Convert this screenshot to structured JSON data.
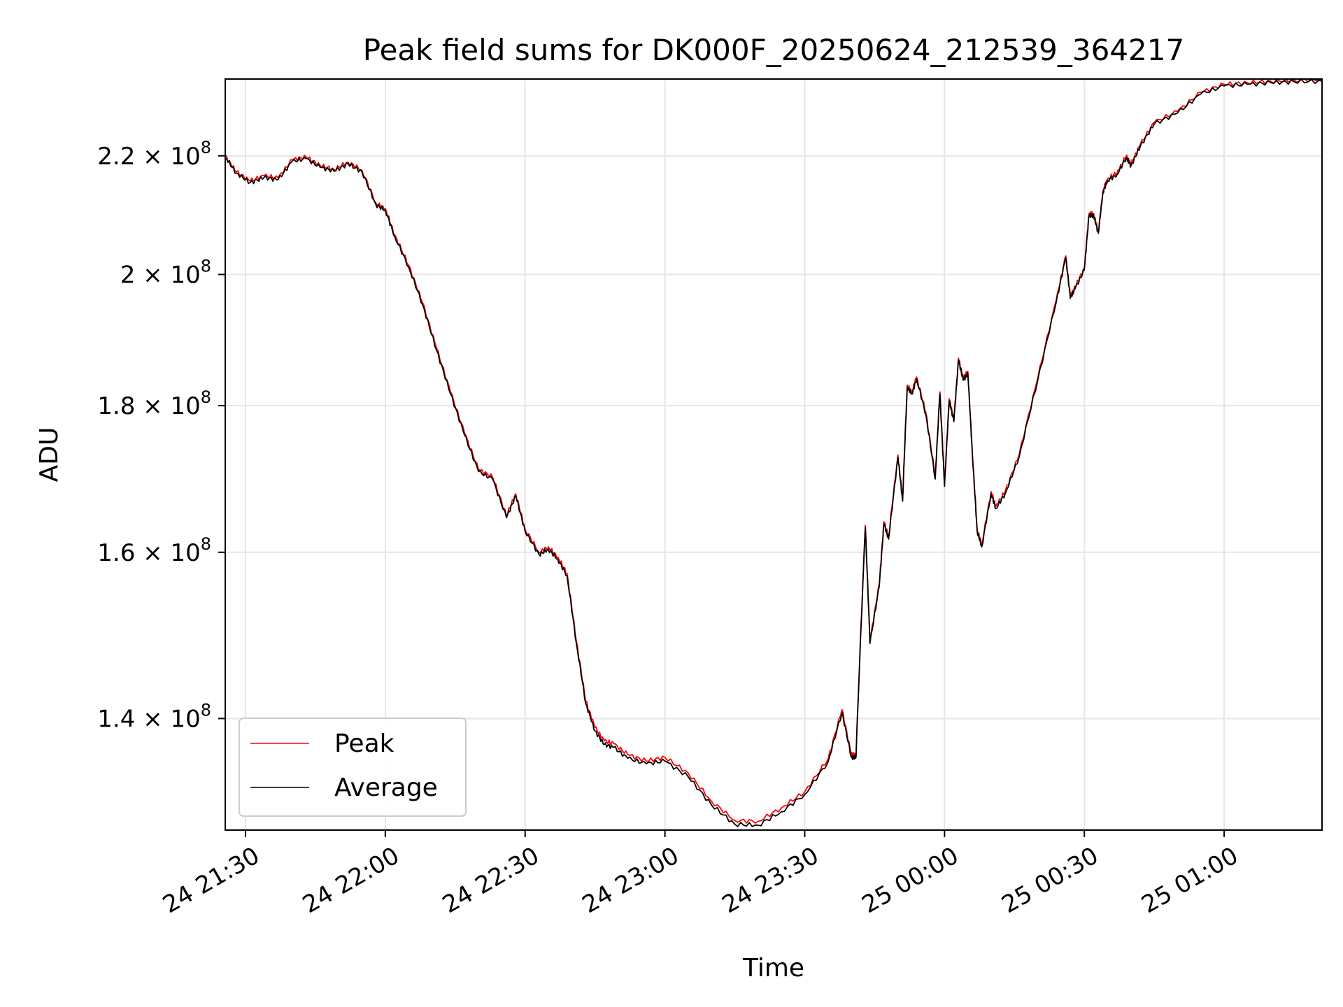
{
  "chart_data": {
    "type": "line",
    "title": "Peak field sums for DK000F_20250624_212539_364217",
    "xlabel": "Time",
    "ylabel": "ADU",
    "y_scale": "log",
    "xlim": [
      "2025-06-24 21:25:39",
      "2025-06-25 01:21:00"
    ],
    "ylim": [
      128000000,
      234000000
    ],
    "grid": true,
    "legend_position": "lower-left",
    "x_ticks": [
      {
        "value": "2025-06-24 21:30:00",
        "label": "24 21:30"
      },
      {
        "value": "2025-06-24 22:00:00",
        "label": "24 22:00"
      },
      {
        "value": "2025-06-24 22:30:00",
        "label": "24 22:30"
      },
      {
        "value": "2025-06-24 23:00:00",
        "label": "24 23:00"
      },
      {
        "value": "2025-06-24 23:30:00",
        "label": "24 23:30"
      },
      {
        "value": "2025-06-25 00:00:00",
        "label": "25 00:00"
      },
      {
        "value": "2025-06-25 00:30:00",
        "label": "25 00:30"
      },
      {
        "value": "2025-06-25 01:00:00",
        "label": "25 01:00"
      }
    ],
    "y_ticks": [
      {
        "value": 140000000,
        "mantissa": "1.4",
        "exponent": "8"
      },
      {
        "value": 160000000,
        "mantissa": "1.6",
        "exponent": "8"
      },
      {
        "value": 180000000,
        "mantissa": "1.8",
        "exponent": "8"
      },
      {
        "value": 200000000,
        "mantissa": "2",
        "exponent": "8"
      },
      {
        "value": 220000000,
        "mantissa": "2.2",
        "exponent": "8"
      }
    ],
    "x": [
      "2025-06-24 21:25:39",
      "2025-06-24 21:28:00",
      "2025-06-24 21:31:00",
      "2025-06-24 21:34:00",
      "2025-06-24 21:37:00",
      "2025-06-24 21:40:00",
      "2025-06-24 21:43:00",
      "2025-06-24 21:46:00",
      "2025-06-24 21:49:00",
      "2025-06-24 21:52:00",
      "2025-06-24 21:55:00",
      "2025-06-24 21:58:00",
      "2025-06-24 22:00:00",
      "2025-06-24 22:02:00",
      "2025-06-24 22:05:00",
      "2025-06-24 22:08:00",
      "2025-06-24 22:11:00",
      "2025-06-24 22:14:00",
      "2025-06-24 22:17:00",
      "2025-06-24 22:20:00",
      "2025-06-24 22:23:00",
      "2025-06-24 22:26:00",
      "2025-06-24 22:28:00",
      "2025-06-24 22:30:00",
      "2025-06-24 22:33:00",
      "2025-06-24 22:35:00",
      "2025-06-24 22:37:00",
      "2025-06-24 22:39:00",
      "2025-06-24 22:41:00",
      "2025-06-24 22:43:00",
      "2025-06-24 22:45:00",
      "2025-06-24 22:47:00",
      "2025-06-24 22:49:00",
      "2025-06-24 22:52:00",
      "2025-06-24 22:56:00",
      "2025-06-24 23:00:00",
      "2025-06-24 23:05:00",
      "2025-06-24 23:10:00",
      "2025-06-24 23:15:00",
      "2025-06-24 23:20:00",
      "2025-06-24 23:25:00",
      "2025-06-24 23:30:00",
      "2025-06-24 23:35:00",
      "2025-06-24 23:38:00",
      "2025-06-24 23:40:00",
      "2025-06-24 23:41:00",
      "2025-06-24 23:43:00",
      "2025-06-24 23:44:00",
      "2025-06-24 23:46:00",
      "2025-06-24 23:47:00",
      "2025-06-24 23:48:00",
      "2025-06-24 23:50:00",
      "2025-06-24 23:51:00",
      "2025-06-24 23:52:00",
      "2025-06-24 23:53:00",
      "2025-06-24 23:54:00",
      "2025-06-24 23:56:00",
      "2025-06-24 23:58:00",
      "2025-06-24 23:59:00",
      "2025-06-25 00:00:00",
      "2025-06-25 00:01:00",
      "2025-06-25 00:02:00",
      "2025-06-25 00:03:00",
      "2025-06-25 00:04:00",
      "2025-06-25 00:05:00",
      "2025-06-25 00:06:00",
      "2025-06-25 00:07:00",
      "2025-06-25 00:08:00",
      "2025-06-25 00:10:00",
      "2025-06-25 00:11:00",
      "2025-06-25 00:13:00",
      "2025-06-25 00:16:00",
      "2025-06-25 00:20:00",
      "2025-06-25 00:24:00",
      "2025-06-25 00:26:00",
      "2025-06-25 00:27:00",
      "2025-06-25 00:28:00",
      "2025-06-25 00:30:00",
      "2025-06-25 00:31:00",
      "2025-06-25 00:32:00",
      "2025-06-25 00:33:00",
      "2025-06-25 00:34:00",
      "2025-06-25 00:35:00",
      "2025-06-25 00:37:00",
      "2025-06-25 00:39:00",
      "2025-06-25 00:40:00",
      "2025-06-25 00:42:00",
      "2025-06-25 00:45:00",
      "2025-06-25 00:50:00",
      "2025-06-25 00:55:00",
      "2025-06-25 01:00:00",
      "2025-06-25 01:05:00",
      "2025-06-25 01:10:00",
      "2025-06-25 01:15:00",
      "2025-06-25 01:21:00"
    ],
    "series": [
      {
        "name": "Peak",
        "color": "#ff0000",
        "values": [
          220000000,
          217200000,
          215600000,
          216500000,
          216100000,
          219300000,
          219800000,
          218300000,
          217600000,
          218900000,
          217500000,
          211800000,
          210900000,
          206500000,
          201500000,
          195500000,
          188500000,
          182000000,
          176100000,
          171000000,
          170000000,
          164800000,
          167700000,
          163000000,
          160000000,
          160700000,
          159400000,
          157300000,
          149000000,
          142000000,
          139000000,
          137500000,
          137200000,
          136000000,
          135300000,
          135700000,
          134000000,
          131000000,
          129000000,
          128900000,
          130300000,
          132000000,
          135500000,
          141000000,
          136000000,
          136000000,
          163500000,
          149000000,
          156000000,
          164000000,
          162000000,
          173000000,
          167000000,
          183000000,
          182000000,
          184200000,
          179000000,
          170000000,
          182000000,
          169000000,
          181000000,
          178000000,
          187000000,
          184000000,
          185000000,
          173000000,
          163000000,
          161000000,
          168000000,
          166000000,
          168000000,
          173000000,
          184000000,
          196000000,
          203000000,
          196500000,
          198000000,
          201000000,
          210000000,
          210000000,
          207000000,
          214000000,
          216000000,
          217000000,
          220000000,
          218500000,
          222000000,
          226000000,
          228000000,
          231500000,
          233000000,
          233300000,
          233600000,
          233800000,
          233900000
        ]
      },
      {
        "name": "Average",
        "color": "#000000",
        "values": [
          219800000,
          217000000,
          215300000,
          216200000,
          215800000,
          219000000,
          219500000,
          218000000,
          217300000,
          218600000,
          217200000,
          211500000,
          210600000,
          206200000,
          201200000,
          195200000,
          188200000,
          181700000,
          175800000,
          170700000,
          169700000,
          164500000,
          167400000,
          162700000,
          159700000,
          160400000,
          159100000,
          157000000,
          148700000,
          141700000,
          138600000,
          137100000,
          136800000,
          135600000,
          135000000,
          135300000,
          133600000,
          130600000,
          128600000,
          128500000,
          129900000,
          131700000,
          135200000,
          140700000,
          135700000,
          135700000,
          163200000,
          148700000,
          155700000,
          163700000,
          161700000,
          172700000,
          166700000,
          182700000,
          181700000,
          183900000,
          178700000,
          169700000,
          181700000,
          168700000,
          180700000,
          177700000,
          186700000,
          183700000,
          184700000,
          172700000,
          162700000,
          160700000,
          167700000,
          165700000,
          167700000,
          172700000,
          183700000,
          195700000,
          202700000,
          196200000,
          197700000,
          200700000,
          209700000,
          209700000,
          206700000,
          213700000,
          215700000,
          216700000,
          219700000,
          218200000,
          221700000,
          225700000,
          227700000,
          231200000,
          232700000,
          233000000,
          233300000,
          233500000,
          233600000
        ]
      }
    ]
  }
}
